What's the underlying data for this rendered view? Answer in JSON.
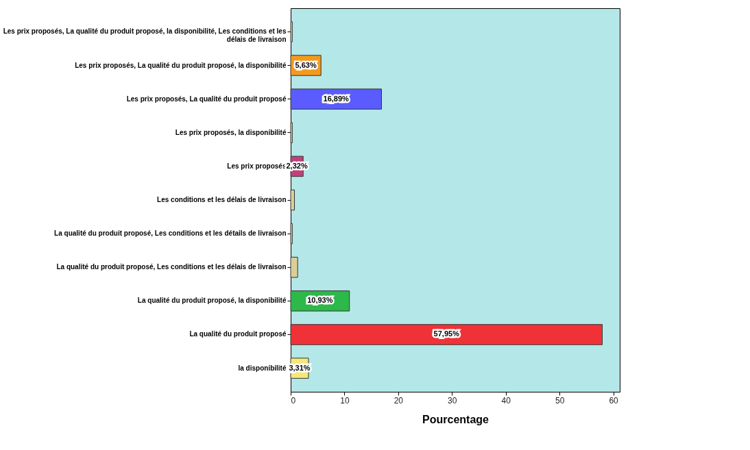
{
  "chart_data": {
    "type": "bar",
    "orientation": "horizontal",
    "xlabel": "Pourcentage",
    "categories": [
      "Les prix proposés, La qualité du produit proposé, la disponibilité, Les conditions et les\ndélais de livraison",
      "Les prix proposés, La qualité du produit proposé, la disponibilité",
      "Les prix proposés, La qualité du produit proposé",
      "Les prix proposés, la disponibilité",
      "Les prix proposés",
      "Les conditions et les délais de livraison",
      "La qualité du produit proposé, Les conditions et les détails de livraison",
      "La qualité du produit proposé, Les conditions et les délais de livraison",
      "La qualité du produit proposé, la disponibilité",
      "La qualité du produit proposé",
      "la disponibilité"
    ],
    "values": [
      0.3,
      5.63,
      16.89,
      0.3,
      2.32,
      0.7,
      0.3,
      1.3,
      10.93,
      57.95,
      3.31
    ],
    "colors": [
      "#d8d098",
      "#f39a1e",
      "#5a5cff",
      "#d8d098",
      "#c0407a",
      "#d8d098",
      "#d8d098",
      "#d8d098",
      "#2db84a",
      "#f03238",
      "#f5e878"
    ],
    "value_labels": [
      null,
      "5,63%",
      "16,89%",
      null,
      "2,32%",
      null,
      null,
      null,
      "10,93%",
      "57,95%",
      "3,31%"
    ],
    "xlim": [
      0,
      61.2
    ],
    "xticks": [
      0,
      10,
      20,
      30,
      40,
      50,
      60
    ],
    "grid": false
  }
}
